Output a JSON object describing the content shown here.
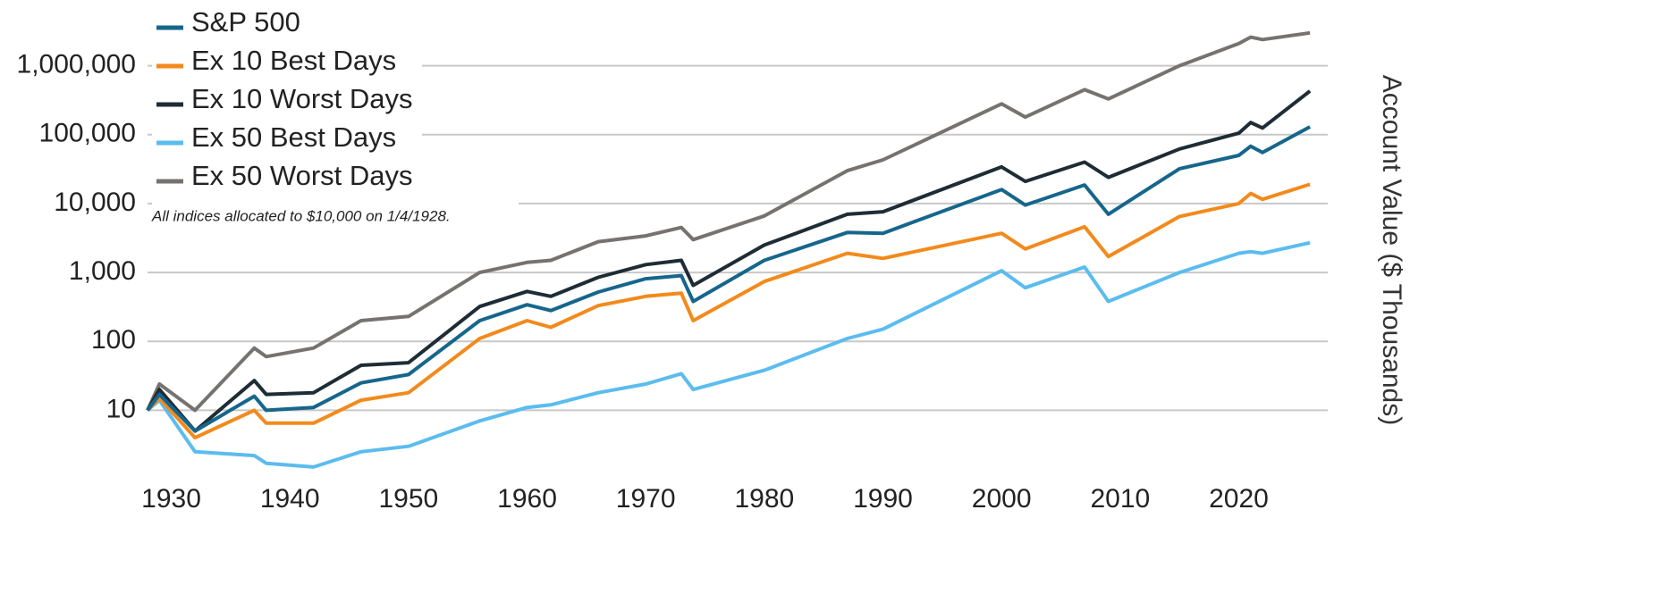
{
  "chart_data": {
    "type": "line",
    "y_label": "Account Value ($ Thousands)",
    "note": "All indices allocated to $10,000 on 1/4/1928.",
    "log_scale": true,
    "grid": true,
    "legend": "upper left",
    "x": [
      1928,
      1929,
      1932,
      1937,
      1938,
      1942,
      1946,
      1950,
      1956,
      1960,
      1962,
      1966,
      1970,
      1973,
      1974,
      1980,
      1987,
      1990,
      2000,
      2002,
      2007,
      2009,
      2015,
      2020,
      2021,
      2022,
      2026
    ],
    "xlim": [
      1928,
      2027.5
    ],
    "xticks": [
      1930,
      1940,
      1950,
      1960,
      1970,
      1980,
      1990,
      2000,
      2010,
      2020
    ],
    "ylim": [
      0.8,
      9000000
    ],
    "yticks": [
      10,
      100,
      {
        "value": 1000,
        "label": "1,000"
      },
      {
        "value": 10000,
        "label": "10,000"
      },
      {
        "value": 100000,
        "label": "100,000"
      },
      {
        "value": 1000000,
        "label": "1,000,000"
      }
    ],
    "series": [
      {
        "name": "S&P 500",
        "color": "#16668c",
        "values": [
          10,
          17,
          5,
          16,
          10,
          11,
          25,
          33,
          200,
          340,
          280,
          520,
          810,
          900,
          380,
          1500,
          3800,
          3700,
          16000,
          9500,
          18600,
          7000,
          32000,
          50000,
          68000,
          55000,
          130000
        ]
      },
      {
        "name": "Ex 10 Best Days",
        "color": "#f28a1c",
        "values": [
          10,
          15,
          4,
          10,
          6.5,
          6.5,
          14,
          18,
          110,
          200,
          160,
          330,
          450,
          500,
          200,
          740,
          1900,
          1600,
          3700,
          2200,
          4600,
          1700,
          6500,
          10000,
          14000,
          11500,
          19000
        ]
      },
      {
        "name": "Ex 10 Worst Days",
        "color": "#1e2c35",
        "values": [
          10,
          20,
          5,
          27,
          17,
          18,
          45,
          49,
          320,
          530,
          450,
          850,
          1300,
          1500,
          650,
          2500,
          7000,
          7600,
          34000,
          21000,
          40000,
          24000,
          62000,
          105000,
          150000,
          125000,
          430000
        ]
      },
      {
        "name": "Ex 50 Best Days",
        "color": "#5bbcee",
        "values": [
          10,
          14,
          2.5,
          2.2,
          1.7,
          1.5,
          2.5,
          3,
          7,
          11,
          12,
          18,
          24,
          34,
          20,
          38,
          110,
          150,
          1060,
          600,
          1200,
          380,
          1000,
          1900,
          2000,
          1900,
          2700
        ]
      },
      {
        "name": "Ex 50 Worst Days",
        "color": "#767270",
        "values": [
          10,
          24,
          10,
          80,
          60,
          80,
          200,
          230,
          1000,
          1400,
          1500,
          2800,
          3400,
          4500,
          3000,
          6600,
          30000,
          43000,
          280000,
          180000,
          450000,
          330000,
          1000000,
          2100000,
          2600000,
          2400000,
          3000000
        ]
      }
    ]
  }
}
